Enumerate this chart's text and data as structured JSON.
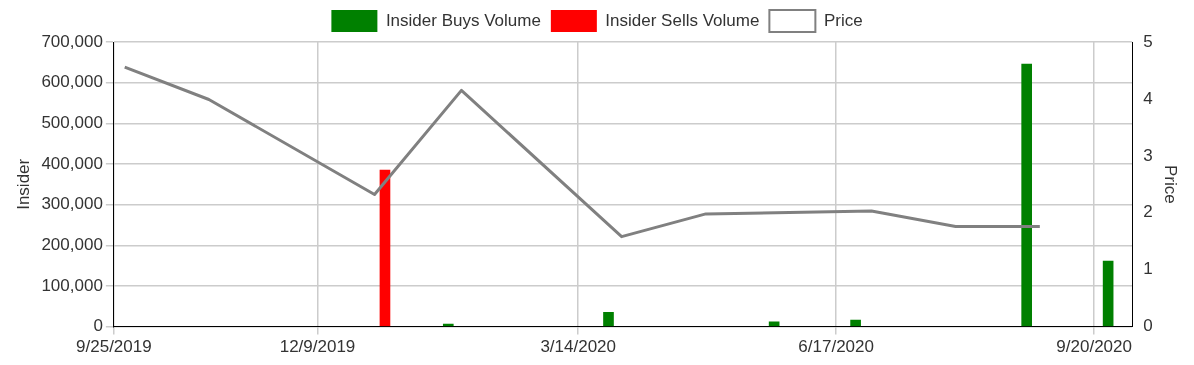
{
  "chart_data": {
    "type": "bar",
    "ylabel": "Insider",
    "y2label": "Price",
    "legend": "top",
    "grid": true,
    "xlim": [
      "2019-09-25",
      "2020-10-04"
    ],
    "xticks": [
      {
        "value": "2019-09-25",
        "label": "9/25/2019"
      },
      {
        "value": "2019-12-09",
        "label": "12/9/2019"
      },
      {
        "value": "2020-03-14",
        "label": "3/14/2020"
      },
      {
        "value": "2020-06-17",
        "label": "6/17/2020"
      },
      {
        "value": "2020-09-20",
        "label": "9/20/2020"
      }
    ],
    "ylim": [
      0,
      700000
    ],
    "yticks": [
      0,
      {
        "value": 100000,
        "label": "100,000"
      },
      {
        "value": 200000,
        "label": "200,000"
      },
      {
        "value": 300000,
        "label": "300,000"
      },
      {
        "value": 400000,
        "label": "400,000"
      },
      {
        "value": 500000,
        "label": "500,000"
      },
      {
        "value": 600000,
        "label": "600,000"
      },
      {
        "value": 700000,
        "label": "700,000"
      }
    ],
    "y2lim": [
      0,
      5
    ],
    "y2ticks": [
      0,
      1,
      2,
      3,
      4,
      5
    ],
    "series": [
      {
        "name": "Insider Buys Volume",
        "color": "#008000",
        "x": [
          "2020-01-28",
          "2020-03-27",
          "2020-05-27",
          "2020-06-26",
          "2020-08-28",
          "2020-09-27"
        ],
        "values": [
          6000,
          35000,
          12000,
          16000,
          646000,
          161000
        ]
      },
      {
        "name": "Insider Sells Volume",
        "color": "#ff0000",
        "x": [
          "2020-01-01"
        ],
        "values": [
          385000
        ]
      },
      {
        "name": "Price",
        "type": "line",
        "axis": "y2",
        "color": "#808080",
        "x": [
          "2019-09-29",
          "2019-10-30",
          "2019-12-30",
          "2020-01-31",
          "2020-03-30",
          "2020-04-30",
          "2020-06-30",
          "2020-07-31",
          "2020-08-31"
        ],
        "values": [
          4.56,
          3.99,
          2.32,
          4.15,
          1.58,
          1.98,
          2.03,
          1.76,
          1.76
        ]
      }
    ]
  }
}
